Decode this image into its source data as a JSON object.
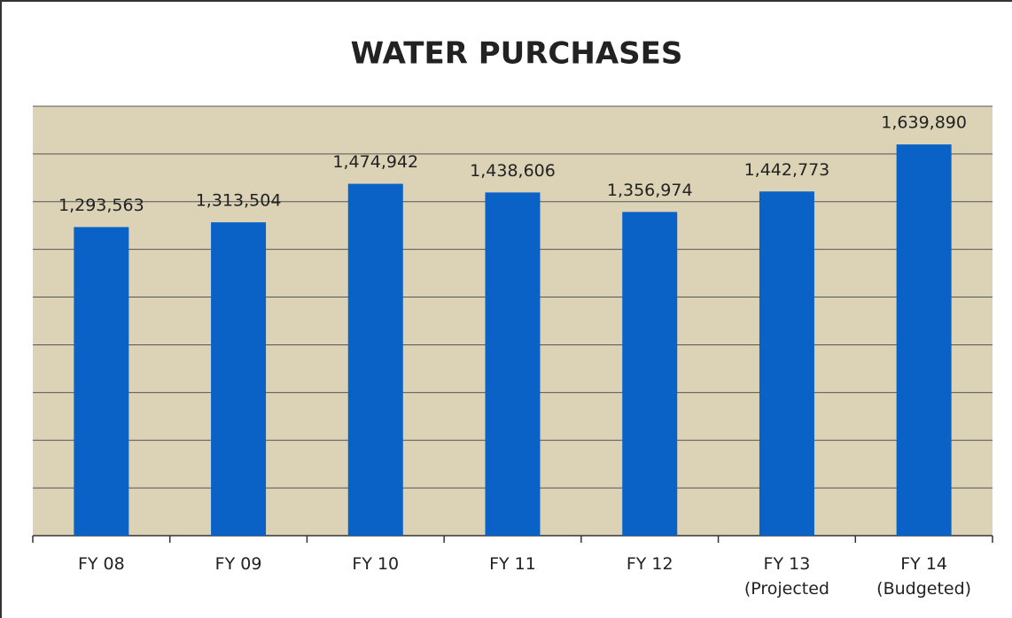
{
  "chart_data": {
    "type": "bar",
    "title": "WATER PURCHASES",
    "categories": [
      "FY 08",
      "FY 09",
      "FY 10",
      "FY 11",
      "FY 12",
      "FY 13 (Projected",
      "FY 14 (Budgeted)"
    ],
    "values": [
      1293563,
      1313504,
      1474942,
      1438606,
      1356974,
      1442773,
      1639890
    ],
    "value_labels": [
      "1,293,563",
      "1,313,504",
      "1,474,942",
      "1,438,606",
      "1,356,974",
      "1,442,773",
      "1,639,890"
    ],
    "color": "#0b62c6",
    "ylim": [
      0,
      1800000
    ],
    "yticks": [
      0,
      200000,
      400000,
      600000,
      800000,
      1000000,
      1200000,
      1400000,
      1600000,
      1800000
    ],
    "grid": true
  }
}
